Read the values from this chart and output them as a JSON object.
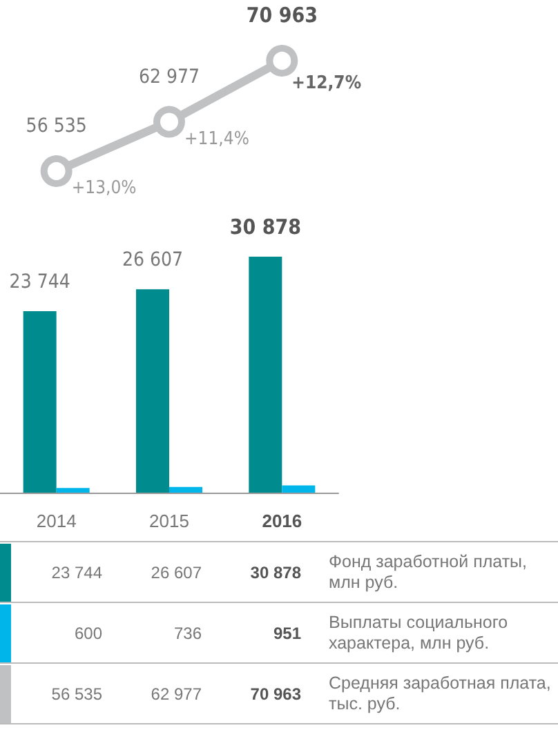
{
  "chart_data": [
    {
      "type": "line",
      "categories": [
        "2014",
        "2015",
        "2016"
      ],
      "tick_labels": false,
      "marker": "circle",
      "data_labels": true,
      "series": [
        {
          "name": "Средняя заработная плата, тыс. руб.",
          "color": "#c0c1c3",
          "values": [
            56535,
            62977,
            70963
          ],
          "value_labels": [
            "56 535",
            "62 977",
            "70 963"
          ]
        }
      ],
      "annotations": [
        "+13,0%",
        "+11,4%",
        "+12,7%"
      ]
    },
    {
      "type": "bar",
      "categories": [
        "2014",
        "2015",
        "2016"
      ],
      "data_labels": true,
      "series": [
        {
          "name": "Фонд заработной платы, млн руб.",
          "color": "#008b8f",
          "values": [
            23744,
            26607,
            30878
          ],
          "value_labels": [
            "23 744",
            "26 607",
            "30 878"
          ]
        },
        {
          "name": "Выплаты социального характера, млн руб.",
          "color": "#00b5ea",
          "values": [
            600,
            736,
            951
          ],
          "value_labels": [
            "600",
            "736",
            "951"
          ]
        }
      ]
    }
  ]
}
